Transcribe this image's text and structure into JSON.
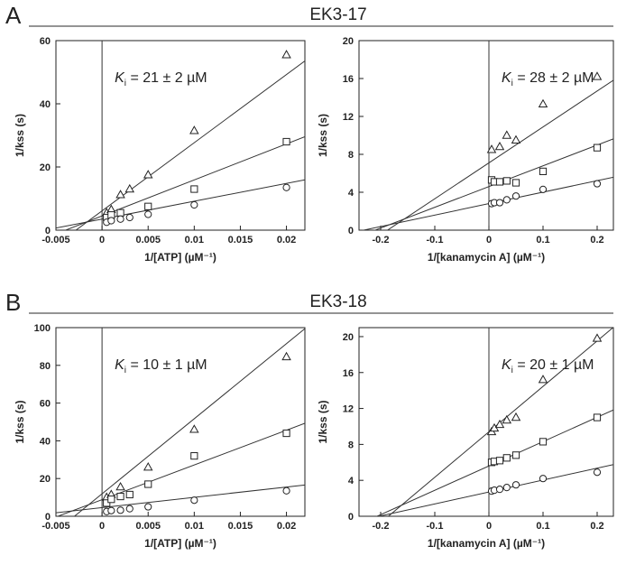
{
  "panels": [
    {
      "letter": "A",
      "title": "EK3-17",
      "charts": [
        {
          "type": "scatter",
          "xlabel": "1/[ATP] (µM⁻¹)",
          "ylabel": "1/kss (s)",
          "xlim": [
            -0.005,
            0.022
          ],
          "ylim": [
            0,
            60
          ],
          "xticks": [
            -0.005,
            0,
            0.005,
            0.01,
            0.015,
            0.02
          ],
          "xtick_labels": [
            "-0.005",
            "0",
            "0.005",
            "0.01",
            "0.015",
            "0.02"
          ],
          "yticks": [
            0,
            20,
            40,
            60
          ],
          "ytick_labels": [
            "0",
            "20",
            "40",
            "60"
          ],
          "annotation": {
            "ki_label": "K",
            "ki_sub": "i",
            "ki_text": " = 21 ± 2 µM"
          },
          "series": [
            {
              "marker": "triangle",
              "x": [
                0.0005,
                0.001,
                0.002,
                0.003,
                0.005,
                0.01,
                0.02
              ],
              "y": [
                5.5,
                6.5,
                11.2,
                13.0,
                17.5,
                31.5,
                55.5
              ],
              "line": [
                2158,
                6.1
              ]
            },
            {
              "marker": "square",
              "x": [
                0.0005,
                0.001,
                0.002,
                0.005,
                0.01,
                0.02
              ],
              "y": [
                4.0,
                4.8,
                5.5,
                7.5,
                13.0,
                28.0
              ],
              "line": [
                1140,
                4.5
              ]
            },
            {
              "marker": "circle",
              "x": [
                0.0005,
                0.001,
                0.002,
                0.003,
                0.005,
                0.01,
                0.02
              ],
              "y": [
                2.5,
                3.0,
                3.5,
                4.0,
                5.0,
                8.0,
                13.5
              ],
              "line": [
                565,
                3.5
              ]
            }
          ],
          "x_intercept": -0.0028
        },
        {
          "type": "scatter",
          "xlabel": "1/[kanamycin A] (µM⁻¹)",
          "ylabel": "1/kss (s)",
          "xlim": [
            -0.24,
            0.23
          ],
          "ylim": [
            0,
            20
          ],
          "xticks": [
            -0.2,
            -0.1,
            0,
            0.1,
            0.2
          ],
          "xtick_labels": [
            "-0.2",
            "-0.1",
            "0",
            "0.1",
            "0.2"
          ],
          "yticks": [
            0,
            4,
            8,
            12,
            16,
            20
          ],
          "ytick_labels": [
            "0",
            "4",
            "8",
            "12",
            "16",
            "20"
          ],
          "annotation": {
            "ki_label": "K",
            "ki_sub": "i",
            "ki_text": " = 28 ± 2 µM"
          },
          "series": [
            {
              "marker": "triangle",
              "x": [
                0.005,
                0.02,
                0.033,
                0.05,
                0.1,
                0.2
              ],
              "y": [
                8.5,
                8.8,
                10.0,
                9.5,
                13.3,
                16.2
              ],
              "line": [
                37.9,
                7.1
              ]
            },
            {
              "marker": "square",
              "x": [
                0.005,
                0.01,
                0.02,
                0.033,
                0.05,
                0.1,
                0.2
              ],
              "y": [
                5.3,
                5.1,
                5.1,
                5.2,
                5.0,
                6.2,
                8.7
              ],
              "line": [
                21.9,
                4.6
              ]
            },
            {
              "marker": "circle",
              "x": [
                0.005,
                0.01,
                0.02,
                0.033,
                0.05,
                0.1,
                0.2
              ],
              "y": [
                2.8,
                2.9,
                2.9,
                3.2,
                3.6,
                4.3,
                4.9
              ],
              "line": [
                12.1,
                2.8
              ]
            }
          ],
          "x_intercept": -0.205
        }
      ]
    },
    {
      "letter": "B",
      "title": "EK3-18",
      "charts": [
        {
          "type": "scatter",
          "xlabel": "1/[ATP] (µM⁻¹)",
          "ylabel": "1/kss (s)",
          "xlim": [
            -0.005,
            0.022
          ],
          "ylim": [
            0,
            100
          ],
          "xticks": [
            -0.005,
            0,
            0.005,
            0.01,
            0.015,
            0.02
          ],
          "xtick_labels": [
            "-0.005",
            "0",
            "0.005",
            "0.01",
            "0.015",
            "0.02"
          ],
          "yticks": [
            0,
            20,
            40,
            60,
            80,
            100
          ],
          "ytick_labels": [
            "0",
            "20",
            "40",
            "60",
            "80",
            "100"
          ],
          "annotation": {
            "ki_label": "K",
            "ki_sub": "i",
            "ki_text": " = 10 ± 1 µM"
          },
          "series": [
            {
              "marker": "triangle",
              "x": [
                0.0005,
                0.001,
                0.002,
                0.005,
                0.01,
                0.02
              ],
              "y": [
                10.0,
                11.5,
                15.5,
                26.0,
                46.0,
                84.5
              ],
              "line": [
                3980,
                11.9
              ]
            },
            {
              "marker": "square",
              "x": [
                0.0005,
                0.001,
                0.002,
                0.003,
                0.005,
                0.01,
                0.02
              ],
              "y": [
                7.0,
                9.0,
                10.5,
                11.5,
                17.0,
                32.0,
                44.0
              ],
              "line": [
                1840,
                8.8
              ]
            },
            {
              "marker": "circle",
              "x": [
                0.0005,
                0.001,
                0.002,
                0.003,
                0.005,
                0.01,
                0.02
              ],
              "y": [
                2.5,
                3.0,
                3.2,
                4.0,
                5.0,
                8.5,
                13.5
              ],
              "line": [
                545,
                4.6
              ]
            }
          ],
          "x_intercept": -0.003
        },
        {
          "type": "scatter",
          "xlabel": "1/[kanamycin A] (µM⁻¹)",
          "ylabel": "1/kss (s)",
          "xlim": [
            -0.24,
            0.23
          ],
          "ylim": [
            0,
            21
          ],
          "xticks": [
            -0.2,
            -0.1,
            0,
            0.1,
            0.2
          ],
          "xtick_labels": [
            "-0.2",
            "-0.1",
            "0",
            "0.1",
            "0.2"
          ],
          "yticks": [
            0,
            4,
            8,
            12,
            16,
            20
          ],
          "ytick_labels": [
            "0",
            "4",
            "8",
            "12",
            "16",
            "20"
          ],
          "annotation": {
            "ki_label": "K",
            "ki_sub": "i",
            "ki_text": " = 20 ± 1 µM"
          },
          "series": [
            {
              "marker": "triangle",
              "x": [
                0.005,
                0.01,
                0.02,
                0.033,
                0.05,
                0.1,
                0.2
              ],
              "y": [
                9.4,
                9.8,
                10.2,
                10.7,
                11.0,
                15.2,
                19.8
              ],
              "line": [
                50.6,
                9.4
              ]
            },
            {
              "marker": "square",
              "x": [
                0.005,
                0.01,
                0.02,
                0.033,
                0.05,
                0.1,
                0.2
              ],
              "y": [
                6.0,
                6.1,
                6.2,
                6.5,
                6.8,
                8.3,
                11.0
              ],
              "line": [
                27.1,
                5.6
              ]
            },
            {
              "marker": "circle",
              "x": [
                0.005,
                0.01,
                0.02,
                0.033,
                0.05,
                0.1,
                0.2
              ],
              "y": [
                2.8,
                2.9,
                3.0,
                3.2,
                3.5,
                4.2,
                4.9
              ],
              "line": [
                13.3,
                2.7
              ]
            }
          ],
          "x_intercept": -0.205
        }
      ]
    }
  ]
}
